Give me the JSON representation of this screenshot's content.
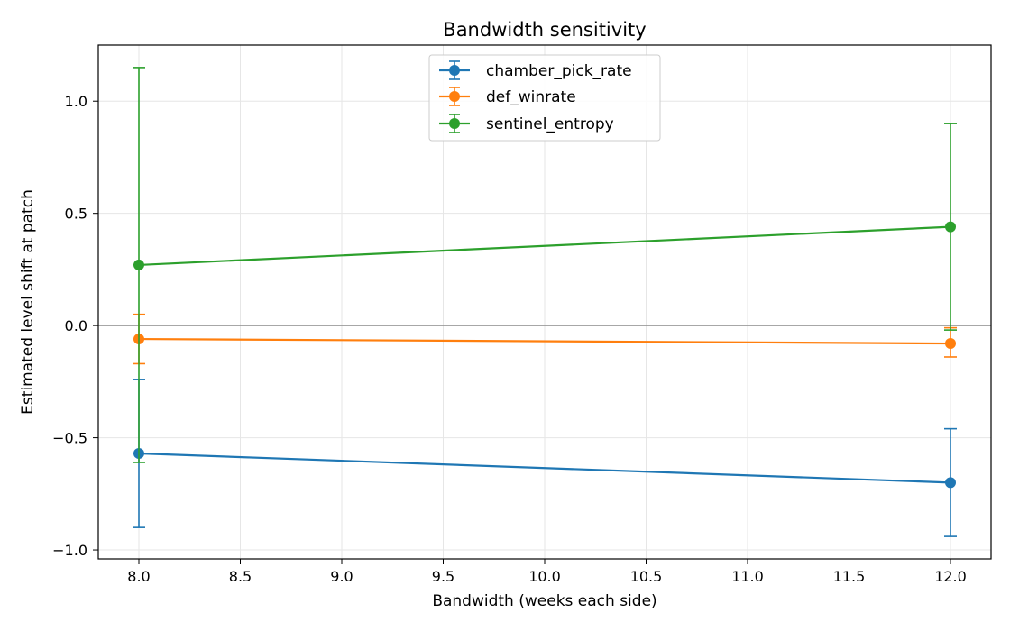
{
  "chart_data": {
    "type": "line",
    "title": "Bandwidth sensitivity",
    "xlabel": "Bandwidth (weeks each side)",
    "ylabel": "Estimated level shift at patch",
    "xlim": [
      7.8,
      12.2
    ],
    "ylim": [
      -1.04,
      1.25
    ],
    "xticks": [
      8.0,
      8.5,
      9.0,
      9.5,
      10.0,
      10.5,
      11.0,
      11.5,
      12.0
    ],
    "xtick_labels": [
      "8.0",
      "8.5",
      "9.0",
      "9.5",
      "10.0",
      "10.5",
      "11.0",
      "11.5",
      "12.0"
    ],
    "yticks": [
      -1.0,
      -0.5,
      0.0,
      0.5,
      1.0
    ],
    "ytick_labels": [
      "−1.0",
      "−0.5",
      "0.0",
      "0.5",
      "1.0"
    ],
    "grid": true,
    "reference_line_y": 0.0,
    "legend_position": "top-center",
    "x": [
      8.0,
      12.0
    ],
    "series": [
      {
        "name": "chamber_pick_rate",
        "color": "#1f77b4",
        "values": [
          -0.57,
          -0.7
        ],
        "err_low": [
          -0.9,
          -0.94
        ],
        "err_high": [
          -0.24,
          -0.46
        ]
      },
      {
        "name": "def_winrate",
        "color": "#ff7f0e",
        "values": [
          -0.06,
          -0.08
        ],
        "err_low": [
          -0.17,
          -0.14
        ],
        "err_high": [
          0.05,
          -0.01
        ]
      },
      {
        "name": "sentinel_entropy",
        "color": "#2ca02c",
        "values": [
          0.27,
          0.44
        ],
        "err_low": [
          -0.61,
          -0.02
        ],
        "err_high": [
          1.15,
          0.9
        ]
      }
    ]
  }
}
